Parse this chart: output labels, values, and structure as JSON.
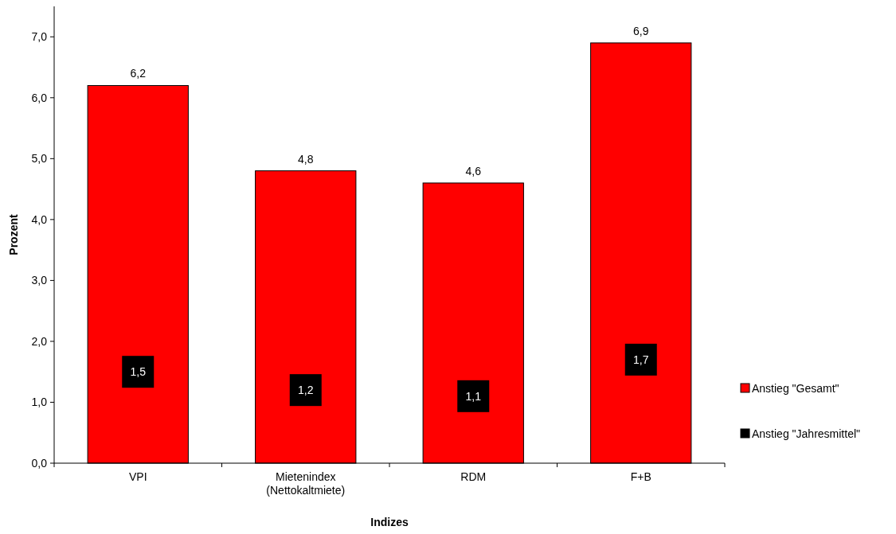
{
  "chart_data": {
    "type": "bar",
    "xlabel": "Indizes",
    "ylabel": "Prozent",
    "categories": [
      "VPI",
      "Mietenindex\n(Nettokaltmiete)",
      "RDM",
      "F+B"
    ],
    "series": [
      {
        "name": "Anstieg \"Gesamt\"",
        "color": "#ff0000",
        "values": [
          6.2,
          4.8,
          4.6,
          6.9
        ],
        "value_labels": [
          "6,2",
          "4,8",
          "4,6",
          "6,9"
        ]
      },
      {
        "name": "Anstieg \"Jahresmittel\"",
        "type": "scatter",
        "marker": "square",
        "color": "#000000",
        "x": [
          "VPI",
          "Mietenindex\n(Nettokaltmiete)",
          "RDM",
          "F+B"
        ],
        "values": [
          1.5,
          1.2,
          1.1,
          1.7
        ],
        "value_labels": [
          "1,5",
          "1,2",
          "1,1",
          "1,7"
        ]
      }
    ],
    "ylim": [
      0,
      7.5
    ],
    "yticks": [
      {
        "value": 0,
        "label": "0,0"
      },
      {
        "value": 1,
        "label": "1,0"
      },
      {
        "value": 2,
        "label": "2,0"
      },
      {
        "value": 3,
        "label": "3,0"
      },
      {
        "value": 4,
        "label": "4,0"
      },
      {
        "value": 5,
        "label": "5,0"
      },
      {
        "value": 6,
        "label": "6,0"
      },
      {
        "value": 7,
        "label": "7,0"
      }
    ],
    "legend": "right",
    "grid": false
  }
}
